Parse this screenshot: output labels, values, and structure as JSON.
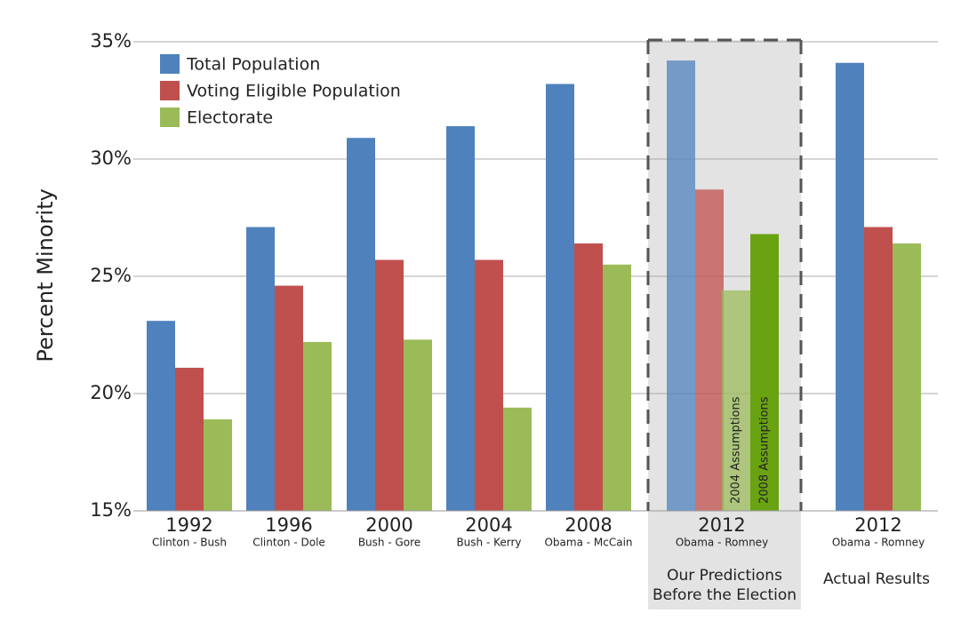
{
  "chart_data": {
    "type": "bar",
    "y_label": "Percent Minority",
    "categories": [
      "1992",
      "1996",
      "2000",
      "2004",
      "2008",
      "2012",
      "2012"
    ],
    "subcategories": [
      "Clinton - Bush",
      "Clinton - Dole",
      "Bush - Gore",
      "Bush - Kerry",
      "Obama - McCain",
      "Obama - Romney",
      "Obama - Romney"
    ],
    "series": [
      {
        "name": "Total Population",
        "color": "#4f81bd",
        "values": [
          23.1,
          27.1,
          30.9,
          31.4,
          33.2,
          34.2,
          34.1
        ]
      },
      {
        "name": "Voting Eligible Population",
        "color": "#c0504d",
        "values": [
          21.1,
          24.6,
          25.7,
          25.7,
          26.4,
          28.7,
          27.1
        ]
      },
      {
        "name": "Electorate",
        "color": "#9bbb59",
        "values": [
          18.9,
          22.2,
          22.3,
          19.4,
          25.5,
          24.4,
          26.4
        ]
      }
    ],
    "bar_notes": [
      null,
      null,
      null,
      null,
      null,
      "2004 Assumptions",
      null
    ],
    "extra_series": {
      "name": "2008 Assumptions",
      "color": "#6aa312",
      "values": [
        null,
        null,
        null,
        null,
        null,
        26.8,
        null
      ]
    },
    "panel_label": [
      "Our Predictions",
      "Before the Election"
    ],
    "actual_label": "Actual Results",
    "ylim": [
      15,
      35
    ],
    "yticks": [
      {
        "value": 15,
        "label": "15%"
      },
      {
        "value": 20,
        "label": "20%"
      },
      {
        "value": 25,
        "label": "25%"
      },
      {
        "value": 30,
        "label": "30%"
      },
      {
        "value": 35,
        "label": "35%"
      }
    ],
    "grid": true
  }
}
